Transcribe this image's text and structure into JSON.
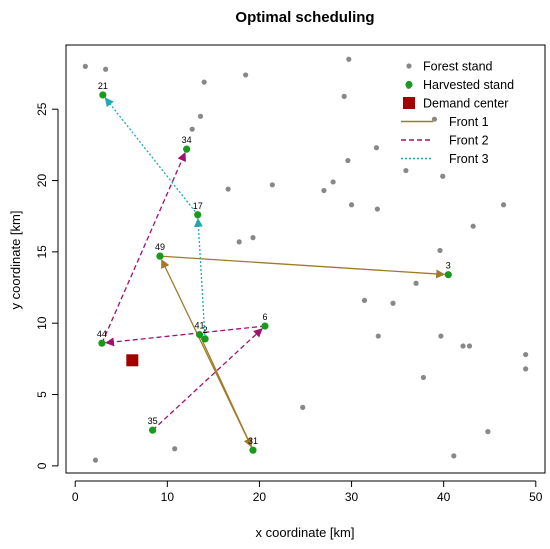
{
  "chart_data": {
    "type": "scatter",
    "title": "Optimal scheduling",
    "xlabel": "x coordinate [km]",
    "ylabel": "y coordinate [km]",
    "xlim": [
      -1,
      51
    ],
    "ylim": [
      -0.5,
      29.5
    ],
    "xticks": [
      0,
      10,
      20,
      30,
      40,
      50
    ],
    "yticks": [
      0,
      5,
      10,
      15,
      20,
      25
    ],
    "grid": false,
    "legend_position": "top-right",
    "colors": {
      "forest": "#888888",
      "harvested": "#1a9a1a",
      "demand": "#a00000",
      "front1": "#a07a2a",
      "front2": "#a01070",
      "front3": "#20a8b0"
    },
    "legend": [
      {
        "label": "Forest stand",
        "kind": "dot",
        "color_key": "forest"
      },
      {
        "label": "Harvested stand",
        "kind": "dot",
        "color_key": "harvested"
      },
      {
        "label": "Demand center",
        "kind": "square",
        "color_key": "demand"
      },
      {
        "label": "Front 1",
        "kind": "solid",
        "color_key": "front1"
      },
      {
        "label": "Front 2",
        "kind": "dashed",
        "color_key": "front2"
      },
      {
        "label": "Front 3",
        "kind": "dotted",
        "color_key": "front3"
      }
    ],
    "forest_stands": [
      [
        1.1,
        28.0
      ],
      [
        3.3,
        27.8
      ],
      [
        2.2,
        0.4
      ],
      [
        10.8,
        1.2
      ],
      [
        12.7,
        23.6
      ],
      [
        13.6,
        24.5
      ],
      [
        14.0,
        26.9
      ],
      [
        18.5,
        27.4
      ],
      [
        16.6,
        19.4
      ],
      [
        21.4,
        19.7
      ],
      [
        17.8,
        15.7
      ],
      [
        19.3,
        16.0
      ],
      [
        24.7,
        4.1
      ],
      [
        27.0,
        19.3
      ],
      [
        28.0,
        19.9
      ],
      [
        29.2,
        25.9
      ],
      [
        29.7,
        28.5
      ],
      [
        29.6,
        21.4
      ],
      [
        30.0,
        18.3
      ],
      [
        32.7,
        22.3
      ],
      [
        32.8,
        18.0
      ],
      [
        31.4,
        11.6
      ],
      [
        32.9,
        9.1
      ],
      [
        34.5,
        11.4
      ],
      [
        35.9,
        20.7
      ],
      [
        36.2,
        26.6
      ],
      [
        37.0,
        12.8
      ],
      [
        37.8,
        6.2
      ],
      [
        39.0,
        24.3
      ],
      [
        39.6,
        15.1
      ],
      [
        39.9,
        20.3
      ],
      [
        39.7,
        9.1
      ],
      [
        42.1,
        8.4
      ],
      [
        42.8,
        8.4
      ],
      [
        43.2,
        16.8
      ],
      [
        44.8,
        2.4
      ],
      [
        46.5,
        18.3
      ],
      [
        41.1,
        0.7
      ],
      [
        48.9,
        7.8
      ],
      [
        48.9,
        6.8
      ]
    ],
    "harvested": [
      {
        "id": "21",
        "x": 3.0,
        "y": 26.0
      },
      {
        "id": "34",
        "x": 12.1,
        "y": 22.2
      },
      {
        "id": "17",
        "x": 13.3,
        "y": 17.6
      },
      {
        "id": "49",
        "x": 9.2,
        "y": 14.7
      },
      {
        "id": "3",
        "x": 40.5,
        "y": 13.4
      },
      {
        "id": "6",
        "x": 20.6,
        "y": 9.8
      },
      {
        "id": "41",
        "x": 13.5,
        "y": 9.2
      },
      {
        "id": "2",
        "x": 14.1,
        "y": 8.9
      },
      {
        "id": "44",
        "x": 2.9,
        "y": 8.6
      },
      {
        "id": "35",
        "x": 8.4,
        "y": 2.5
      },
      {
        "id": "31",
        "x": 19.3,
        "y": 1.1
      }
    ],
    "demand_center": {
      "x": 6.2,
      "y": 7.4
    },
    "fronts": [
      {
        "name": "Front 1",
        "style": "solid",
        "color_key": "front1",
        "moves": [
          [
            "41",
            "31"
          ],
          [
            "31",
            "49"
          ],
          [
            "49",
            "3"
          ]
        ]
      },
      {
        "name": "Front 2",
        "style": "dashed",
        "color_key": "front2",
        "moves": [
          [
            "35",
            "6"
          ],
          [
            "6",
            "44"
          ],
          [
            "44",
            "34"
          ]
        ]
      },
      {
        "name": "Front 3",
        "style": "dotted",
        "color_key": "front3",
        "moves": [
          [
            "2",
            "17"
          ],
          [
            "17",
            "21"
          ]
        ]
      }
    ]
  }
}
